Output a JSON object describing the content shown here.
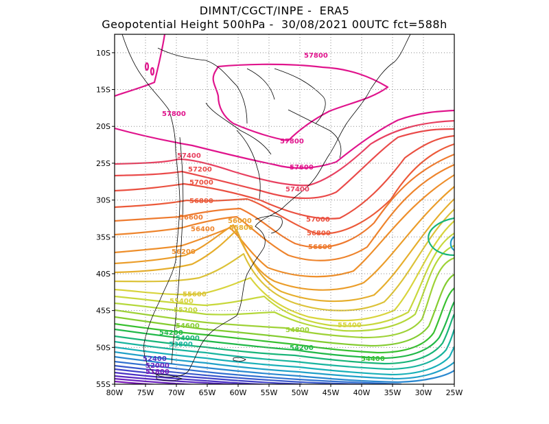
{
  "title": {
    "line1": "DIMNT/CGCT/INPE -  ERA5",
    "line2": "Geopotential Height 500hPa -  30/08/2021 00UTC fct=588h"
  },
  "axes": {
    "lat_labels": [
      "10S",
      "15S",
      "20S",
      "25S",
      "30S",
      "35S",
      "40S",
      "45S",
      "50S",
      "55S"
    ],
    "lon_labels": [
      "80W",
      "75W",
      "70W",
      "65W",
      "60W",
      "55W",
      "50W",
      "45W",
      "40W",
      "35W",
      "30W",
      "25W"
    ],
    "lat_range": [
      -55,
      -7.5
    ],
    "lon_range": [
      -80,
      -25
    ],
    "grid": "dotted"
  },
  "contours": {
    "interval": 200,
    "colors": {
      "57800": "#e0148c",
      "57600": "#e0148c",
      "57400": "#e84060",
      "57200": "#ea4a4a",
      "57000": "#ea5040",
      "56800": "#ec5a3a",
      "56600": "#ee7a2e",
      "56400": "#ee842c",
      "56200": "#ee8e2a",
      "56000": "#eb9d2a",
      "55800": "#e6ae2c",
      "55600": "#dcc238",
      "55400": "#d8d43c",
      "55200": "#c8d83c",
      "55000": "#b4d83a",
      "54800": "#9ed236",
      "54600": "#84cc30",
      "54400": "#38c030",
      "54200": "#20b848",
      "54000": "#18b478",
      "53800": "#18b49e",
      "53600": "#18b0b8",
      "53400": "#20a0c8",
      "53200": "#2a88d0",
      "53000": "#3270d0",
      "52800": "#3a58cc",
      "52600": "#4040c8",
      "52400": "#4a30c4",
      "52200": "#5828c0",
      "52000": "#6a20bc",
      "51800": "#7a18b8"
    },
    "labels": [
      "57800",
      "57800",
      "57800",
      "57600",
      "57600",
      "57400",
      "57400",
      "57200",
      "57000",
      "57000",
      "56800",
      "56800",
      "56600",
      "56600",
      "56400",
      "56200",
      "56000",
      "55800",
      "55600",
      "55400",
      "55400",
      "55200",
      "54800",
      "54600",
      "54400",
      "54200",
      "54200",
      "54000",
      "53800",
      "52400",
      "52000",
      "51800"
    ]
  }
}
